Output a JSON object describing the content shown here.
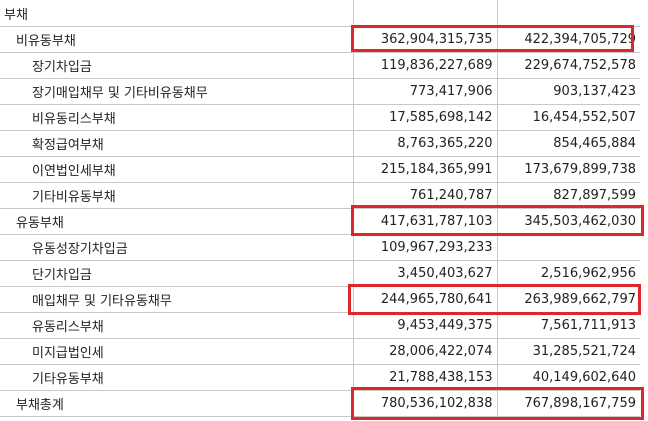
{
  "rows": [
    {
      "label": "부채",
      "v1": "",
      "v2": "",
      "level": 0
    },
    {
      "label": "비유동부채",
      "v1": "362,904,315,735",
      "v2": "422,394,705,729",
      "level": 1
    },
    {
      "label": "장기차입금",
      "v1": "119,836,227,689",
      "v2": "229,674,752,578",
      "level": 2
    },
    {
      "label": "장기매입채무 및 기타비유동채무",
      "v1": "773,417,906",
      "v2": "903,137,423",
      "level": 2
    },
    {
      "label": "비유동리스부채",
      "v1": "17,585,698,142",
      "v2": "16,454,552,507",
      "level": 2
    },
    {
      "label": "확정급여부채",
      "v1": "8,763,365,220",
      "v2": "854,465,884",
      "level": 2
    },
    {
      "label": "이연법인세부채",
      "v1": "215,184,365,991",
      "v2": "173,679,899,738",
      "level": 2
    },
    {
      "label": "기타비유동부채",
      "v1": "761,240,787",
      "v2": "827,897,599",
      "level": 2
    },
    {
      "label": "유동부채",
      "v1": "417,631,787,103",
      "v2": "345,503,462,030",
      "level": 1
    },
    {
      "label": "유동성장기차입금",
      "v1": "109,967,293,233",
      "v2": "",
      "level": 2
    },
    {
      "label": "단기차입금",
      "v1": "3,450,403,627",
      "v2": "2,516,962,956",
      "level": 2
    },
    {
      "label": "매입채무 및 기타유동채무",
      "v1": "244,965,780,641",
      "v2": "263,989,662,797",
      "level": 2
    },
    {
      "label": "유동리스부채",
      "v1": "9,453,449,375",
      "v2": "7,561,711,913",
      "level": 2
    },
    {
      "label": "미지급법인세",
      "v1": "28,006,422,074",
      "v2": "31,285,521,724",
      "level": 2
    },
    {
      "label": "기타유동부채",
      "v1": "21,788,438,153",
      "v2": "40,149,602,640",
      "level": 2
    },
    {
      "label": "부채총계",
      "v1": "780,536,102,838",
      "v2": "767,898,167,759",
      "level": 1
    }
  ],
  "highlight_color": "#e0262d"
}
